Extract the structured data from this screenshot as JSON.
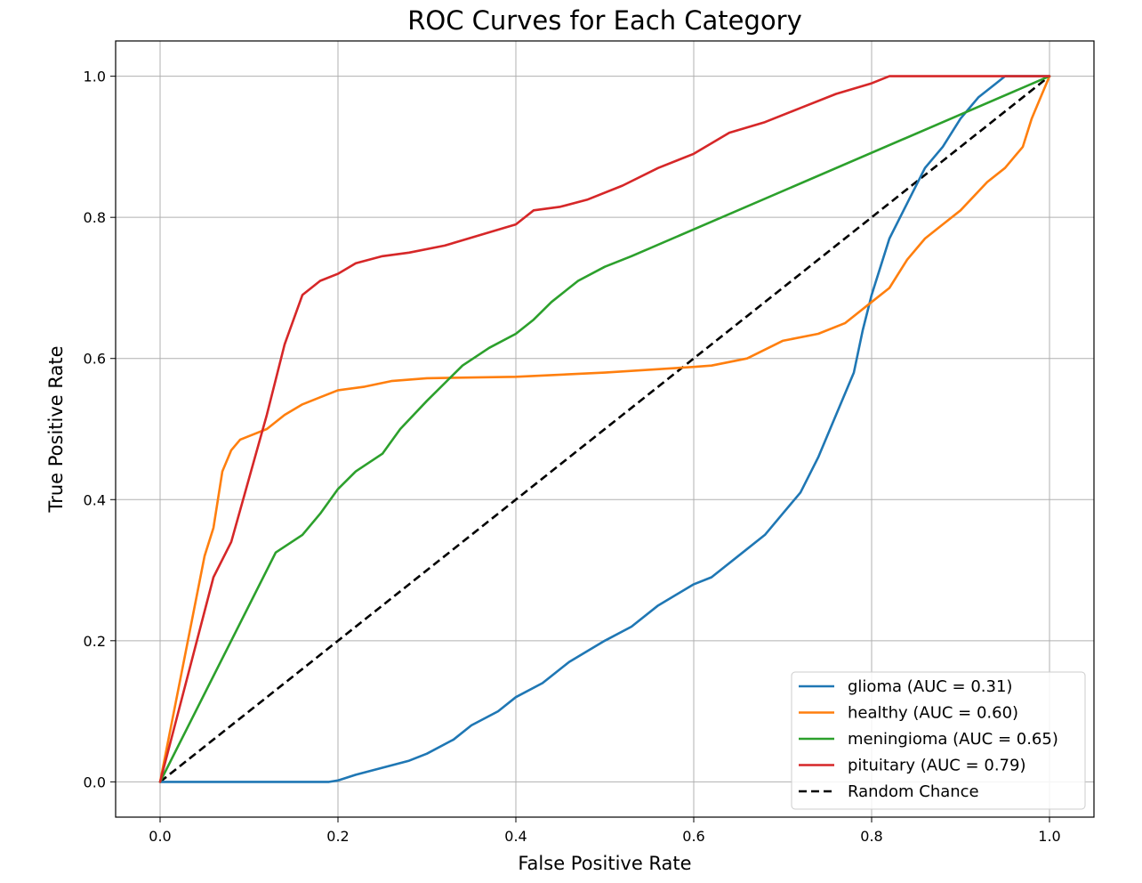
{
  "chart_data": {
    "type": "line",
    "title": "ROC Curves for Each Category",
    "xlabel": "False Positive Rate",
    "ylabel": "True Positive Rate",
    "xlim": [
      -0.05,
      1.05
    ],
    "ylim": [
      -0.05,
      1.05
    ],
    "xticks": [
      "0.0",
      "0.2",
      "0.4",
      "0.6",
      "0.8",
      "1.0"
    ],
    "yticks": [
      "0.0",
      "0.2",
      "0.4",
      "0.6",
      "0.8",
      "1.0"
    ],
    "grid": true,
    "legend_position": "bottom-right",
    "series": [
      {
        "name": "glioma (AUC = 0.31)",
        "color": "#1f77b4",
        "x": [
          0,
          0.1,
          0.19,
          0.2,
          0.22,
          0.25,
          0.28,
          0.3,
          0.33,
          0.35,
          0.38,
          0.4,
          0.43,
          0.46,
          0.5,
          0.53,
          0.56,
          0.6,
          0.62,
          0.65,
          0.68,
          0.7,
          0.72,
          0.74,
          0.76,
          0.78,
          0.79,
          0.8,
          0.81,
          0.82,
          0.84,
          0.86,
          0.88,
          0.9,
          0.92,
          0.94,
          0.95,
          1.0
        ],
        "y": [
          0,
          0,
          0,
          0.002,
          0.01,
          0.02,
          0.03,
          0.04,
          0.06,
          0.08,
          0.1,
          0.12,
          0.14,
          0.17,
          0.2,
          0.22,
          0.25,
          0.28,
          0.29,
          0.32,
          0.35,
          0.38,
          0.41,
          0.46,
          0.52,
          0.58,
          0.64,
          0.69,
          0.73,
          0.77,
          0.82,
          0.87,
          0.9,
          0.94,
          0.97,
          0.99,
          1.0,
          1.0
        ]
      },
      {
        "name": "healthy (AUC = 0.60)",
        "color": "#ff7f0e",
        "x": [
          0,
          0.05,
          0.06,
          0.07,
          0.08,
          0.09,
          0.1,
          0.12,
          0.14,
          0.16,
          0.18,
          0.2,
          0.23,
          0.26,
          0.3,
          0.4,
          0.5,
          0.6,
          0.62,
          0.66,
          0.7,
          0.74,
          0.77,
          0.8,
          0.82,
          0.84,
          0.86,
          0.88,
          0.9,
          0.93,
          0.95,
          0.97,
          0.98,
          1.0
        ],
        "y": [
          0,
          0.32,
          0.36,
          0.44,
          0.47,
          0.485,
          0.49,
          0.5,
          0.52,
          0.535,
          0.545,
          0.555,
          0.56,
          0.568,
          0.572,
          0.574,
          0.58,
          0.588,
          0.59,
          0.6,
          0.625,
          0.635,
          0.65,
          0.68,
          0.7,
          0.74,
          0.77,
          0.79,
          0.81,
          0.85,
          0.87,
          0.9,
          0.94,
          1.0
        ]
      },
      {
        "name": "meningioma (AUC = 0.65)",
        "color": "#2ca02c",
        "x": [
          0,
          0.13,
          0.16,
          0.18,
          0.2,
          0.22,
          0.25,
          0.27,
          0.3,
          0.32,
          0.34,
          0.37,
          0.4,
          0.42,
          0.44,
          0.47,
          0.5,
          0.53,
          1.0
        ],
        "y": [
          0,
          0.325,
          0.35,
          0.38,
          0.415,
          0.44,
          0.465,
          0.5,
          0.54,
          0.565,
          0.59,
          0.615,
          0.635,
          0.655,
          0.68,
          0.71,
          0.73,
          0.745,
          1.0
        ]
      },
      {
        "name": "pituitary (AUC = 0.79)",
        "color": "#d62728",
        "x": [
          0,
          0.06,
          0.08,
          0.1,
          0.12,
          0.14,
          0.16,
          0.18,
          0.2,
          0.22,
          0.25,
          0.28,
          0.32,
          0.36,
          0.4,
          0.42,
          0.45,
          0.48,
          0.52,
          0.56,
          0.6,
          0.64,
          0.68,
          0.72,
          0.76,
          0.8,
          0.82,
          0.85,
          0.9,
          1.0
        ],
        "y": [
          0,
          0.29,
          0.34,
          0.43,
          0.52,
          0.62,
          0.69,
          0.71,
          0.72,
          0.735,
          0.745,
          0.75,
          0.76,
          0.775,
          0.79,
          0.81,
          0.815,
          0.825,
          0.845,
          0.87,
          0.89,
          0.92,
          0.935,
          0.955,
          0.975,
          0.99,
          1.0,
          1.0,
          1.0,
          1.0
        ]
      },
      {
        "name": "Random Chance",
        "color": "#000000",
        "dashed": true,
        "x": [
          0,
          1
        ],
        "y": [
          0,
          1
        ]
      }
    ]
  }
}
